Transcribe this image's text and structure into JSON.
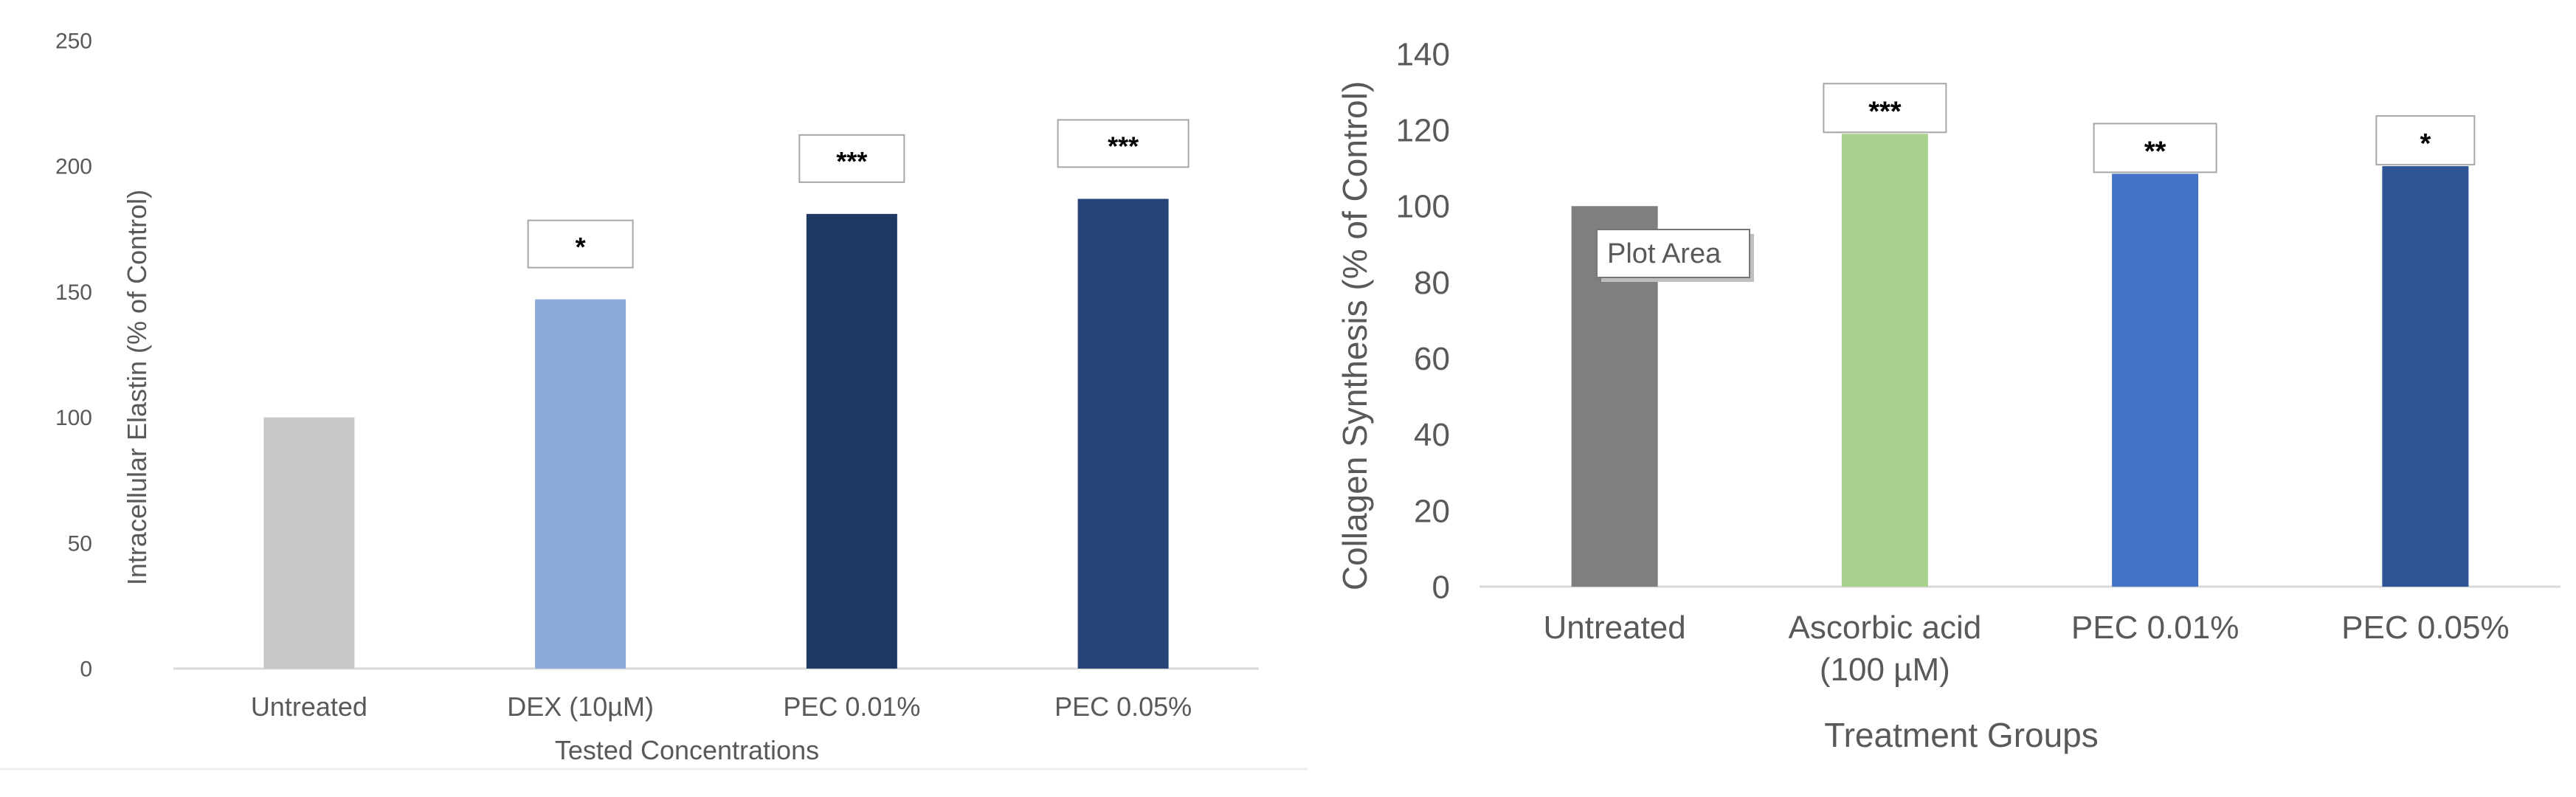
{
  "chart_data": [
    {
      "type": "bar",
      "title": "",
      "xlabel": "Tested Concentrations",
      "ylabel": "Intracellular Elastin (% of Control)",
      "ylim": [
        0,
        250
      ],
      "yticks": [
        "0",
        "50",
        "100",
        "150",
        "200",
        "250"
      ],
      "grid": false,
      "legend": "none",
      "categories": [
        "Untreated",
        "DEX (10µM)",
        "PEC 0.01%",
        "PEC 0.05%"
      ],
      "values": [
        100,
        147,
        181,
        187
      ],
      "colors": [
        "#c8c8c8",
        "#8eaadb",
        "#1f3864",
        "#264478"
      ],
      "significance": [
        "",
        "*",
        "***",
        "***"
      ]
    },
    {
      "type": "bar",
      "title": "",
      "xlabel": "Treatment Groups",
      "ylabel": "Collagen Synthesis (% of Control)",
      "ylim": [
        0,
        140
      ],
      "yticks": [
        "0",
        "20",
        "40",
        "60",
        "80",
        "100",
        "120",
        "140"
      ],
      "grid": false,
      "legend": "none",
      "categories": [
        [
          "Untreated"
        ],
        [
          "Ascorbic acid",
          "(100 µM)"
        ],
        [
          "PEC 0.01%"
        ],
        [
          "PEC 0.05%"
        ]
      ],
      "values": [
        100,
        119,
        108.5,
        110.5
      ],
      "colors": [
        "#7f7f7f",
        "#a9d18e",
        "#4472c4",
        "#2f5597"
      ],
      "significance": [
        "",
        "***",
        "**",
        "*"
      ],
      "tooltip": "Plot Area"
    }
  ]
}
